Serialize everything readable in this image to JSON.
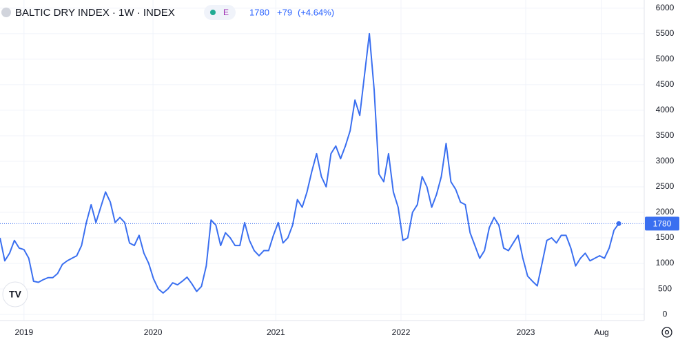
{
  "header": {
    "symbol": "BALTIC DRY INDEX · 1W · INDEX",
    "badge": "E",
    "change": "+79",
    "change_pct": "(+4.64%)"
  },
  "chart_data": {
    "type": "line",
    "color": "#3a6ff0",
    "values": [
      1500,
      1050,
      1200,
      1450,
      1300,
      1270,
      1100,
      650,
      630,
      680,
      720,
      720,
      800,
      980,
      1050,
      1100,
      1150,
      1350,
      1800,
      2150,
      1800,
      2100,
      2400,
      2200,
      1800,
      1900,
      1800,
      1400,
      1350,
      1550,
      1200,
      1000,
      700,
      500,
      420,
      500,
      620,
      580,
      650,
      730,
      600,
      450,
      550,
      950,
      1850,
      1750,
      1350,
      1600,
      1500,
      1350,
      1350,
      1800,
      1450,
      1250,
      1150,
      1250,
      1250,
      1550,
      1800,
      1400,
      1500,
      1750,
      2250,
      2100,
      2400,
      2800,
      3150,
      2700,
      2500,
      3150,
      3300,
      3050,
      3300,
      3600,
      4200,
      3900,
      4700,
      5500,
      4400,
      2750,
      2600,
      3150,
      2400,
      2100,
      1450,
      1500,
      2000,
      2150,
      2700,
      2500,
      2100,
      2350,
      2700,
      3350,
      2600,
      2450,
      2200,
      2150,
      1600,
      1350,
      1100,
      1250,
      1700,
      1900,
      1750,
      1300,
      1250,
      1400,
      1550,
      1100,
      750,
      650,
      560,
      1000,
      1450,
      1500,
      1400,
      1550,
      1550,
      1300,
      950,
      1100,
      1200,
      1050,
      1100,
      1150,
      1100,
      1300,
      1650,
      1780
    ],
    "xlim": [
      0,
      134.3
    ],
    "xticks": [
      {
        "value": 5,
        "label": "2019"
      },
      {
        "value": 31.9,
        "label": "2020"
      },
      {
        "value": 57.5,
        "label": "2021"
      },
      {
        "value": 83.6,
        "label": "2022"
      },
      {
        "value": 109.6,
        "label": "2023"
      },
      {
        "value": 125.4,
        "label": "Aug"
      }
    ],
    "ylim": [
      -120,
      6160
    ],
    "yticks": [
      0,
      500,
      1000,
      1500,
      2000,
      2500,
      3000,
      3500,
      4000,
      4500,
      5000,
      5500,
      6000
    ],
    "grid": true
  }
}
